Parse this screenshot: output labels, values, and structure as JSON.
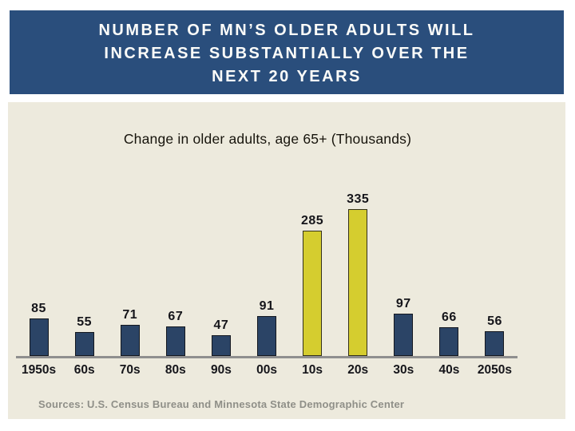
{
  "slide": {
    "title_lines": [
      "NUMBER OF MN’S OLDER ADULTS WILL",
      "INCREASE SUBSTANTIALLY OVER THE",
      "NEXT 20 YEARS"
    ],
    "source_note": "Sources: U.S. Census Bureau and Minnesota State Demographic Center"
  },
  "chart_data": {
    "type": "bar",
    "title": "Change in older adults, age 65+ (Thousands)",
    "categories": [
      "1950s",
      "60s",
      "70s",
      "80s",
      "90s",
      "00s",
      "10s",
      "20s",
      "30s",
      "40s",
      "2050s"
    ],
    "values": [
      85,
      55,
      71,
      67,
      47,
      91,
      285,
      335,
      97,
      66,
      56
    ],
    "highlight_indices": [
      6,
      7
    ],
    "xlabel": "",
    "ylabel": "",
    "ylim": [
      0,
      360
    ],
    "grid": false,
    "legend": false,
    "data_labels": true,
    "bar_color": "#2b4466",
    "bar_border_color": "#14181f",
    "highlight_color": "#d5cd2f",
    "highlight_border_color": "#33301a",
    "axis_color": "#8f8f8f"
  },
  "colors": {
    "header_background": "#2a4e7c",
    "panel_background": "#edeadd",
    "title_text": "#fcfcf9",
    "source_text": "#8f8f88",
    "page_background": "#ffffff"
  }
}
